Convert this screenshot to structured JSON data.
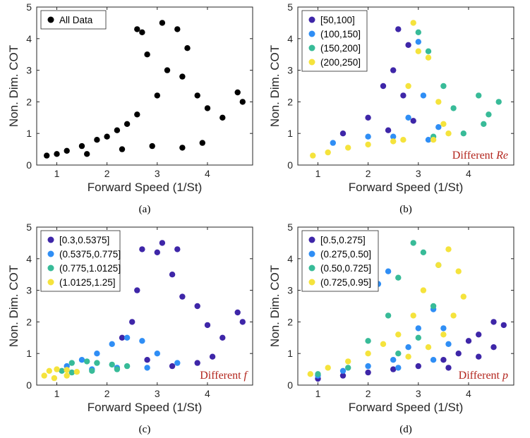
{
  "chart_data": [
    {
      "id": "a",
      "type": "scatter",
      "caption": "(a)",
      "xlabel": "Forward Speed (1/St)",
      "ylabel": "Non. Dim. COT",
      "xlim": [
        0.6,
        4.9
      ],
      "ylim": [
        0,
        5
      ],
      "xticks": [
        1,
        2,
        3,
        4
      ],
      "yticks": [
        0,
        1,
        2,
        3,
        4,
        5
      ],
      "legend_position": "top-left",
      "annotation": null,
      "series": [
        {
          "name": "All Data",
          "color": "#000000",
          "points": [
            [
              0.8,
              0.3
            ],
            [
              1.0,
              0.35
            ],
            [
              1.2,
              0.45
            ],
            [
              1.5,
              0.6
            ],
            [
              1.8,
              0.8
            ],
            [
              2.0,
              0.9
            ],
            [
              2.2,
              1.1
            ],
            [
              2.4,
              1.3
            ],
            [
              2.6,
              1.6
            ],
            [
              2.6,
              4.3
            ],
            [
              2.7,
              4.2
            ],
            [
              2.8,
              3.5
            ],
            [
              3.0,
              2.2
            ],
            [
              3.1,
              4.5
            ],
            [
              3.2,
              3.0
            ],
            [
              3.4,
              4.3
            ],
            [
              3.5,
              2.8
            ],
            [
              3.6,
              3.7
            ],
            [
              3.8,
              2.2
            ],
            [
              4.0,
              1.8
            ],
            [
              4.3,
              1.5
            ],
            [
              4.6,
              2.3
            ],
            [
              4.7,
              2.0
            ],
            [
              3.9,
              0.7
            ],
            [
              3.5,
              0.55
            ],
            [
              2.9,
              0.6
            ],
            [
              2.3,
              0.5
            ],
            [
              1.6,
              0.35
            ]
          ]
        }
      ]
    },
    {
      "id": "b",
      "type": "scatter",
      "caption": "(b)",
      "xlabel": "Forward Speed (1/St)",
      "ylabel": "Non. Dim. COT",
      "xlim": [
        0.6,
        4.9
      ],
      "ylim": [
        0,
        5
      ],
      "xticks": [
        1,
        2,
        3,
        4
      ],
      "yticks": [
        0,
        1,
        2,
        3,
        4,
        5
      ],
      "legend_position": "top-left",
      "annotation": {
        "prefix": "Different ",
        "italic": "Re"
      },
      "series": [
        {
          "name": "[50,100]",
          "color": "#3e26a8",
          "points": [
            [
              1.5,
              1.0
            ],
            [
              2.0,
              1.5
            ],
            [
              2.3,
              2.5
            ],
            [
              2.5,
              3.0
            ],
            [
              2.6,
              4.3
            ],
            [
              2.8,
              3.8
            ],
            [
              2.7,
              2.2
            ],
            [
              2.9,
              1.4
            ],
            [
              2.4,
              1.1
            ]
          ]
        },
        {
          "name": "(100,150]",
          "color": "#2f8ef5",
          "points": [
            [
              1.3,
              0.7
            ],
            [
              2.0,
              0.9
            ],
            [
              2.8,
              1.5
            ],
            [
              3.0,
              3.9
            ],
            [
              3.1,
              2.2
            ],
            [
              3.4,
              1.2
            ],
            [
              3.2,
              0.8
            ],
            [
              2.5,
              0.9
            ]
          ]
        },
        {
          "name": "(150,200]",
          "color": "#38bb98",
          "points": [
            [
              3.0,
              4.2
            ],
            [
              3.2,
              3.6
            ],
            [
              3.5,
              2.5
            ],
            [
              3.7,
              1.8
            ],
            [
              4.2,
              2.2
            ],
            [
              4.4,
              1.6
            ],
            [
              4.6,
              2.0
            ],
            [
              4.3,
              1.3
            ],
            [
              3.9,
              1.0
            ],
            [
              3.3,
              0.9
            ]
          ]
        },
        {
          "name": "(200,250]",
          "color": "#f5e33c",
          "points": [
            [
              0.9,
              0.3
            ],
            [
              1.2,
              0.4
            ],
            [
              1.6,
              0.55
            ],
            [
              2.0,
              0.65
            ],
            [
              2.5,
              0.75
            ],
            [
              2.8,
              2.5
            ],
            [
              2.9,
              4.5
            ],
            [
              3.0,
              3.6
            ],
            [
              3.2,
              3.4
            ],
            [
              3.4,
              2.0
            ],
            [
              3.5,
              1.3
            ],
            [
              3.6,
              1.0
            ],
            [
              3.3,
              0.8
            ],
            [
              2.7,
              0.8
            ]
          ]
        }
      ]
    },
    {
      "id": "c",
      "type": "scatter",
      "caption": "(c)",
      "xlabel": "Forward Speed (1/St)",
      "ylabel": "Non. Dim. COT",
      "xlim": [
        0.6,
        4.9
      ],
      "ylim": [
        0,
        5
      ],
      "xticks": [
        1,
        2,
        3,
        4
      ],
      "yticks": [
        0,
        1,
        2,
        3,
        4,
        5
      ],
      "legend_position": "top-left",
      "annotation": {
        "prefix": "Different ",
        "italic": "f"
      },
      "series": [
        {
          "name": "[0.3,0.5375]",
          "color": "#3e26a8",
          "points": [
            [
              2.3,
              1.5
            ],
            [
              2.5,
              2.0
            ],
            [
              2.6,
              3.0
            ],
            [
              2.7,
              4.3
            ],
            [
              3.0,
              4.2
            ],
            [
              3.1,
              4.5
            ],
            [
              3.4,
              4.3
            ],
            [
              3.3,
              3.5
            ],
            [
              3.5,
              2.8
            ],
            [
              3.8,
              2.5
            ],
            [
              4.0,
              1.9
            ],
            [
              4.3,
              1.5
            ],
            [
              4.6,
              2.3
            ],
            [
              4.7,
              2.0
            ],
            [
              4.1,
              0.9
            ],
            [
              3.8,
              0.7
            ],
            [
              3.3,
              0.6
            ],
            [
              2.8,
              0.8
            ]
          ]
        },
        {
          "name": "(0.5375,0.775]",
          "color": "#2f8ef5",
          "points": [
            [
              1.2,
              0.6
            ],
            [
              1.5,
              0.8
            ],
            [
              1.8,
              1.0
            ],
            [
              2.1,
              1.3
            ],
            [
              2.4,
              1.5
            ],
            [
              2.7,
              1.4
            ],
            [
              3.0,
              1.0
            ],
            [
              3.4,
              0.7
            ],
            [
              2.8,
              0.55
            ],
            [
              2.2,
              0.55
            ],
            [
              1.7,
              0.5
            ]
          ]
        },
        {
          "name": "(0.775,1.0125]",
          "color": "#38bb98",
          "points": [
            [
              1.1,
              0.45
            ],
            [
              1.3,
              0.7
            ],
            [
              1.6,
              0.75
            ],
            [
              1.8,
              0.7
            ],
            [
              2.1,
              0.65
            ],
            [
              2.4,
              0.6
            ],
            [
              2.2,
              0.5
            ],
            [
              1.7,
              0.45
            ],
            [
              1.3,
              0.4
            ]
          ]
        },
        {
          "name": "(1.0125,1.25]",
          "color": "#f5e33c",
          "points": [
            [
              0.75,
              0.3
            ],
            [
              0.85,
              0.45
            ],
            [
              1.0,
              0.5
            ],
            [
              1.2,
              0.48
            ],
            [
              1.4,
              0.42
            ],
            [
              1.2,
              0.3
            ],
            [
              0.95,
              0.22
            ]
          ]
        }
      ]
    },
    {
      "id": "d",
      "type": "scatter",
      "caption": "(d)",
      "xlabel": "Forward Speed (1/St)",
      "ylabel": "Non. Dim. COT",
      "xlim": [
        0.6,
        4.9
      ],
      "ylim": [
        0,
        5
      ],
      "xticks": [
        1,
        2,
        3,
        4
      ],
      "yticks": [
        0,
        1,
        2,
        3,
        4,
        5
      ],
      "legend_position": "top-left",
      "annotation": {
        "prefix": "Different ",
        "italic": "p"
      },
      "series": [
        {
          "name": "[0.5,0.275]",
          "color": "#3e26a8",
          "points": [
            [
              1.0,
              0.2
            ],
            [
              1.5,
              0.3
            ],
            [
              2.0,
              0.4
            ],
            [
              2.5,
              0.5
            ],
            [
              3.0,
              0.6
            ],
            [
              3.5,
              0.8
            ],
            [
              3.8,
              1.0
            ],
            [
              4.0,
              1.4
            ],
            [
              4.2,
              1.6
            ],
            [
              4.5,
              2.0
            ],
            [
              4.7,
              1.9
            ],
            [
              4.5,
              1.2
            ],
            [
              4.2,
              0.9
            ],
            [
              3.6,
              0.55
            ]
          ]
        },
        {
          "name": "(0.275,0.50]",
          "color": "#2f8ef5",
          "points": [
            [
              1.0,
              0.3
            ],
            [
              1.5,
              0.45
            ],
            [
              2.0,
              0.6
            ],
            [
              2.5,
              0.8
            ],
            [
              2.8,
              1.2
            ],
            [
              3.0,
              1.8
            ],
            [
              3.3,
              2.4
            ],
            [
              3.5,
              1.8
            ],
            [
              3.6,
              1.3
            ],
            [
              3.3,
              0.8
            ],
            [
              2.6,
              0.55
            ],
            [
              2.2,
              3.2
            ],
            [
              2.4,
              3.6
            ]
          ]
        },
        {
          "name": "(0.50,0.725]",
          "color": "#38bb98",
          "points": [
            [
              1.0,
              0.35
            ],
            [
              1.6,
              0.55
            ],
            [
              2.0,
              1.4
            ],
            [
              2.4,
              2.2
            ],
            [
              2.6,
              3.4
            ],
            [
              2.9,
              4.5
            ],
            [
              3.1,
              4.2
            ],
            [
              3.4,
              3.8
            ],
            [
              3.3,
              2.5
            ],
            [
              3.0,
              1.5
            ],
            [
              2.6,
              1.0
            ]
          ]
        },
        {
          "name": "(0.725,0.95]",
          "color": "#f5e33c",
          "points": [
            [
              0.85,
              0.35
            ],
            [
              1.2,
              0.55
            ],
            [
              1.6,
              0.75
            ],
            [
              2.0,
              1.0
            ],
            [
              2.3,
              1.3
            ],
            [
              2.6,
              1.6
            ],
            [
              2.9,
              2.2
            ],
            [
              3.1,
              3.0
            ],
            [
              3.4,
              3.8
            ],
            [
              3.6,
              4.3
            ],
            [
              3.8,
              3.6
            ],
            [
              3.9,
              2.8
            ],
            [
              3.7,
              2.2
            ],
            [
              3.5,
              1.6
            ],
            [
              3.2,
              1.2
            ],
            [
              2.8,
              0.9
            ]
          ]
        }
      ]
    }
  ]
}
